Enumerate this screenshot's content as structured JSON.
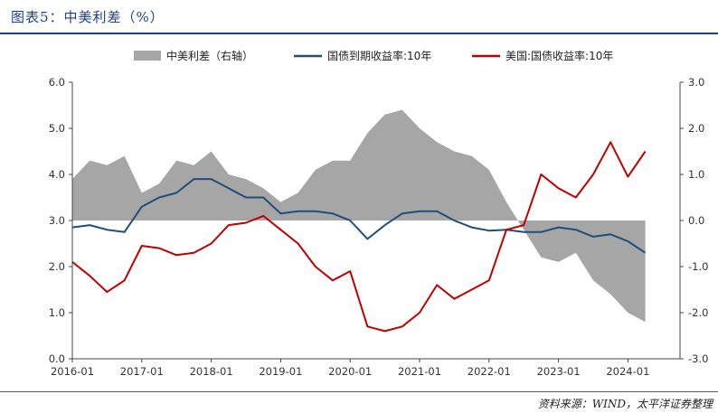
{
  "header": {
    "title": "图表5：中美利差（%）"
  },
  "footer": {
    "source": "资料来源：WIND，太平洋证券整理"
  },
  "colors": {
    "spread": "#a6a6a6",
    "cn": "#1f4e79",
    "us": "#c00000",
    "title": "#1f3f8a"
  },
  "chart_data": {
    "type": "line",
    "title": "中美利差（%）",
    "x_ticks": [
      "2016-01",
      "2017-01",
      "2018-01",
      "2019-01",
      "2020-01",
      "2021-01",
      "2022-01",
      "2023-01",
      "2024-01"
    ],
    "y_left": {
      "ticks": [
        "0.0",
        "1.0",
        "2.0",
        "3.0",
        "4.0",
        "5.0",
        "6.0"
      ],
      "range": [
        0,
        6
      ]
    },
    "y_right": {
      "ticks": [
        "-3.0",
        "-2.0",
        "-1.0",
        "0.0",
        "1.0",
        "2.0",
        "3.0"
      ],
      "range": [
        -3,
        3
      ]
    },
    "legend_position": "top-center",
    "x": [
      "2016-01",
      "2016-04",
      "2016-07",
      "2016-10",
      "2017-01",
      "2017-04",
      "2017-07",
      "2017-10",
      "2018-01",
      "2018-04",
      "2018-07",
      "2018-10",
      "2019-01",
      "2019-04",
      "2019-07",
      "2019-10",
      "2020-01",
      "2020-04",
      "2020-07",
      "2020-10",
      "2021-01",
      "2021-04",
      "2021-07",
      "2021-10",
      "2022-01",
      "2022-04",
      "2022-07",
      "2022-10",
      "2023-01",
      "2023-04",
      "2023-07",
      "2023-10",
      "2024-01",
      "2024-04"
    ],
    "series": [
      {
        "name": "中美利差（右轴）",
        "axis": "right",
        "style": "area",
        "values": [
          0.9,
          1.3,
          1.2,
          1.4,
          0.6,
          0.8,
          1.3,
          1.2,
          1.5,
          1.0,
          0.9,
          0.7,
          0.4,
          0.6,
          1.1,
          1.3,
          1.3,
          1.9,
          2.3,
          2.4,
          2.0,
          1.7,
          1.5,
          1.4,
          1.1,
          0.4,
          -0.2,
          -0.8,
          -0.9,
          -0.7,
          -1.3,
          -1.6,
          -2.0,
          -2.2
        ]
      },
      {
        "name": "国债到期收益率:10年",
        "axis": "left",
        "style": "line",
        "values": [
          2.85,
          2.9,
          2.8,
          2.75,
          3.3,
          3.5,
          3.6,
          3.9,
          3.9,
          3.7,
          3.5,
          3.5,
          3.15,
          3.2,
          3.2,
          3.15,
          3.0,
          2.6,
          2.9,
          3.15,
          3.2,
          3.2,
          3.0,
          2.85,
          2.78,
          2.8,
          2.75,
          2.75,
          2.85,
          2.8,
          2.65,
          2.7,
          2.55,
          2.3
        ]
      },
      {
        "name": "美国:国债收益率:10年",
        "axis": "left",
        "style": "line",
        "values": [
          2.1,
          1.8,
          1.45,
          1.7,
          2.45,
          2.4,
          2.25,
          2.3,
          2.5,
          2.9,
          2.95,
          3.1,
          2.8,
          2.5,
          2.0,
          1.7,
          1.9,
          0.7,
          0.6,
          0.7,
          1.0,
          1.6,
          1.3,
          1.5,
          1.7,
          2.8,
          2.9,
          4.0,
          3.7,
          3.5,
          4.0,
          4.7,
          3.95,
          4.5
        ]
      }
    ]
  }
}
